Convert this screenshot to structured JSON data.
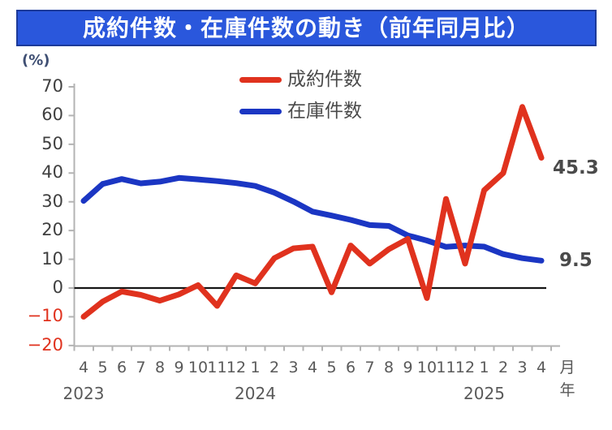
{
  "title": "成約件数・在庫件数の動き（前年同月比）",
  "title_bar_color": "#2A57DC",
  "axis_unit_percent": "(%)",
  "axis_unit_month": "月",
  "axis_unit_year": "年",
  "legend": [
    {
      "label": "成約件数",
      "color": "#E0321E"
    },
    {
      "label": "在庫件数",
      "color": "#1B36C3"
    }
  ],
  "chart_data": {
    "type": "line",
    "title": "成約件数・在庫件数の動き（前年同月比）",
    "ylabel": "(%)",
    "ylim": [
      -20,
      70
    ],
    "ytick_step": 10,
    "grid": false,
    "zero_line": true,
    "legend_position": "top-center",
    "axis_color": "#b3b3b3",
    "zero_line_color": "#161616",
    "tick_label_color": "#3f3f3f",
    "neg_tick_color": "#E0321E",
    "x_month_labels": [
      "4",
      "5",
      "6",
      "7",
      "8",
      "9",
      "10",
      "11",
      "12",
      "1",
      "2",
      "3",
      "4",
      "5",
      "6",
      "7",
      "8",
      "9",
      "10",
      "11",
      "12",
      "1",
      "2",
      "3",
      "4"
    ],
    "x_year_labels": [
      {
        "label": "2023",
        "month_index": 0
      },
      {
        "label": "2024",
        "month_index": 9
      },
      {
        "label": "2025",
        "month_index": 21
      }
    ],
    "series": [
      {
        "name": "成約件数",
        "color": "#E0321E",
        "values": [
          -10.0,
          -4.7,
          -1.2,
          -2.4,
          -4.4,
          -2.2,
          1.0,
          -6.2,
          4.4,
          1.6,
          10.4,
          13.8,
          14.4,
          -1.5,
          14.8,
          8.5,
          13.5,
          17.1,
          -3.5,
          31.0,
          8.5,
          34.0,
          40.0,
          63.0,
          45.3
        ]
      },
      {
        "name": "在庫件数",
        "color": "#1B36C3",
        "values": [
          30.3,
          36.2,
          37.9,
          36.4,
          37.0,
          38.3,
          37.8,
          37.2,
          36.5,
          35.5,
          33.2,
          30.1,
          26.6,
          25.2,
          23.7,
          21.9,
          21.6,
          18.3,
          16.5,
          14.3,
          14.8,
          14.4,
          11.8,
          10.4,
          9.5
        ]
      }
    ],
    "annotations": [
      {
        "series": "成約件数",
        "text": "45.3"
      },
      {
        "series": "在庫件数",
        "text": "9.5"
      }
    ]
  }
}
